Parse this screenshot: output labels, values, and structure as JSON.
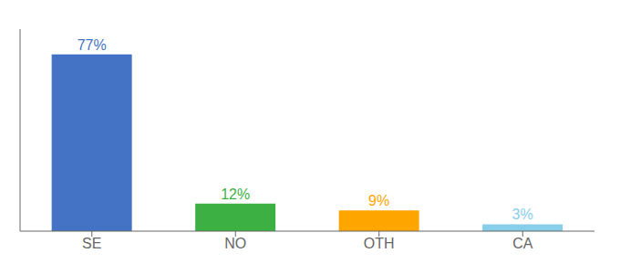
{
  "chart_data": {
    "type": "bar",
    "categories": [
      "SE",
      "NO",
      "OTH",
      "CA"
    ],
    "values": [
      77,
      12,
      9,
      3
    ],
    "value_labels": [
      "77%",
      "12%",
      "9%",
      "3%"
    ],
    "colors": [
      "#4472C4",
      "#3CB043",
      "#FFA500",
      "#87CEEB"
    ],
    "ylim": [
      0,
      88
    ],
    "data_labels": true,
    "tick_labels": "x",
    "grid": false
  }
}
